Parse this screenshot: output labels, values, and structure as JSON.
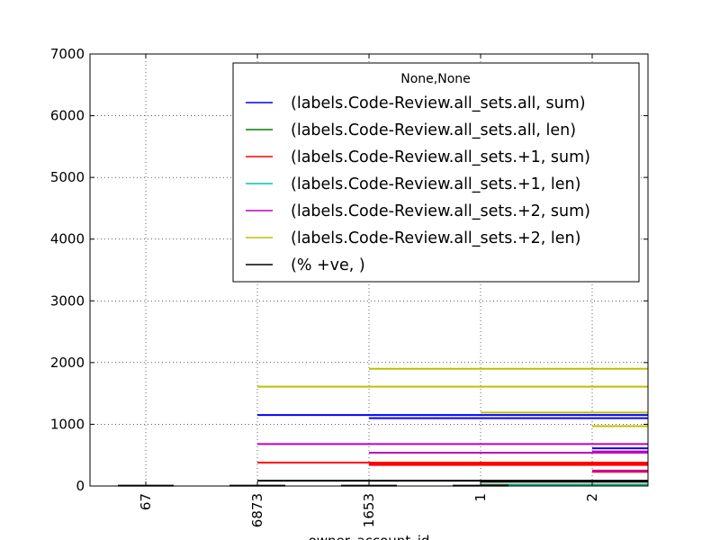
{
  "chart_data": {
    "type": "line",
    "xlabel": "owner_account_id",
    "ylabel": "",
    "x_categories": [
      "67",
      "6873",
      "1653",
      "1",
      "2"
    ],
    "ylim": [
      0,
      7000
    ],
    "yticks": [
      0,
      1000,
      2000,
      3000,
      4000,
      5000,
      6000,
      7000
    ],
    "grid": true,
    "legend_title": "None,None",
    "legend_position": "top-right",
    "series": [
      {
        "name": "(labels.Code-Review.all_sets.all, sum)",
        "color": "#0000ff",
        "segments": [
          {
            "x0": 1,
            "x1": 4.5,
            "y": 1150
          },
          {
            "x0": 2,
            "x1": 4.5,
            "y": 1100
          },
          {
            "x0": 4,
            "x1": 4.5,
            "y": 610
          }
        ]
      },
      {
        "name": "(labels.Code-Review.all_sets.all, len)",
        "color": "#008000",
        "segments": [
          {
            "x0": 3,
            "x1": 4.5,
            "y": 20
          }
        ]
      },
      {
        "name": "(labels.Code-Review.all_sets.+1, sum)",
        "color": "#ff0000",
        "segments": [
          {
            "x0": 1,
            "x1": 4.5,
            "y": 380
          },
          {
            "x0": 2,
            "x1": 4.5,
            "y": 360
          },
          {
            "x0": 2,
            "x1": 4.5,
            "y": 340
          },
          {
            "x0": 4,
            "x1": 4.5,
            "y": 250
          },
          {
            "x0": 4,
            "x1": 4.5,
            "y": 230
          }
        ]
      },
      {
        "name": "(labels.Code-Review.all_sets.+1, len)",
        "color": "#00bfbf",
        "segments": [
          {
            "x0": 3,
            "x1": 4.5,
            "y": 10
          }
        ]
      },
      {
        "name": "(labels.Code-Review.all_sets.+2, sum)",
        "color": "#bf00bf",
        "segments": [
          {
            "x0": 1,
            "x1": 4.5,
            "y": 680
          },
          {
            "x0": 2,
            "x1": 4.5,
            "y": 540
          },
          {
            "x0": 4,
            "x1": 4.5,
            "y": 560
          },
          {
            "x0": 4,
            "x1": 4.5,
            "y": 240
          }
        ]
      },
      {
        "name": "(labels.Code-Review.all_sets.+2, len)",
        "color": "#bfbf00",
        "segments": [
          {
            "x0": 1,
            "x1": 4.5,
            "y": 1610
          },
          {
            "x0": 2,
            "x1": 4.5,
            "y": 1900
          },
          {
            "x0": 3,
            "x1": 4.5,
            "y": 1190
          },
          {
            "x0": 4,
            "x1": 4.5,
            "y": 970
          }
        ]
      },
      {
        "name": "(% +ve, )",
        "color": "#000000",
        "segments": [
          {
            "x0": -0.25,
            "x1": 0.25,
            "y": 5
          },
          {
            "x0": 0.75,
            "x1": 1.25,
            "y": 5
          },
          {
            "x0": 1.75,
            "x1": 2.25,
            "y": 5
          },
          {
            "x0": 2.75,
            "x1": 3.25,
            "y": 5
          },
          {
            "x0": 1,
            "x1": 4.5,
            "y": 85
          },
          {
            "x0": 3,
            "x1": 4.5,
            "y": 70
          }
        ]
      }
    ]
  }
}
